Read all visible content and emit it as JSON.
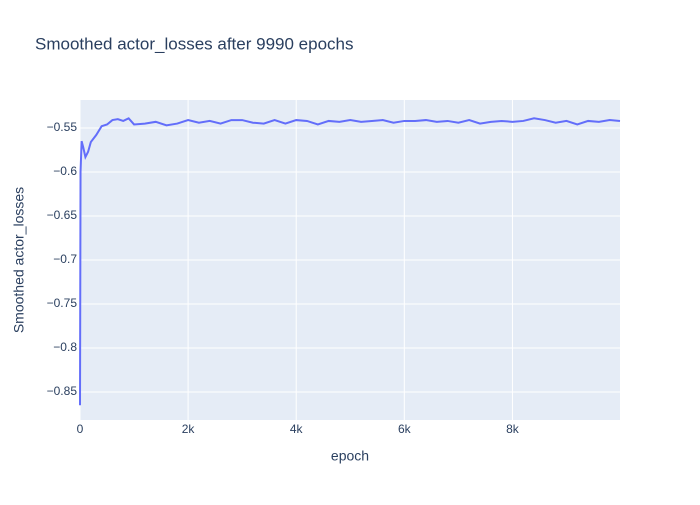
{
  "chart_data": {
    "type": "line",
    "title": "Smoothed actor_losses after 9990 epochs",
    "x_label": "epoch",
    "y_label": "Smoothed actor_losses",
    "x": [
      0,
      10,
      30,
      60,
      100,
      150,
      200,
      300,
      400,
      500,
      600,
      700,
      800,
      900,
      1000,
      1200,
      1400,
      1600,
      1800,
      2000,
      2200,
      2400,
      2600,
      2800,
      3000,
      3200,
      3400,
      3600,
      3800,
      4000,
      4200,
      4400,
      4600,
      4800,
      5000,
      5200,
      5400,
      5600,
      5800,
      6000,
      6200,
      6400,
      6600,
      6800,
      7000,
      7200,
      7400,
      7600,
      7800,
      8000,
      8200,
      8400,
      8600,
      8800,
      9000,
      9200,
      9400,
      9600,
      9800,
      9990
    ],
    "series": [
      {
        "color": "#636efa",
        "values": [
          -0.865,
          -0.6,
          -0.565,
          -0.572,
          -0.583,
          -0.577,
          -0.566,
          -0.558,
          -0.548,
          -0.546,
          -0.541,
          -0.54,
          -0.542,
          -0.539,
          -0.546,
          -0.545,
          -0.543,
          -0.547,
          -0.545,
          -0.541,
          -0.544,
          -0.542,
          -0.545,
          -0.541,
          -0.541,
          -0.544,
          -0.545,
          -0.541,
          -0.545,
          -0.541,
          -0.542,
          -0.546,
          -0.542,
          -0.543,
          -0.541,
          -0.543,
          -0.542,
          -0.541,
          -0.544,
          -0.542,
          -0.542,
          -0.541,
          -0.543,
          -0.542,
          -0.544,
          -0.541,
          -0.545,
          -0.543,
          -0.542,
          -0.543,
          -0.542,
          -0.539,
          -0.541,
          -0.544,
          -0.542,
          -0.546,
          -0.542,
          -0.543,
          -0.541,
          -0.542
        ]
      }
    ],
    "xlim": [
      0,
      9990
    ],
    "ylim": [
      -0.8818,
      -0.5182
    ],
    "xticks": [
      0,
      {
        "value": 2000,
        "label": "2k"
      },
      {
        "value": 4000,
        "label": "4k"
      },
      {
        "value": 6000,
        "label": "6k"
      },
      {
        "value": 8000,
        "label": "8k"
      }
    ],
    "yticks": [
      {
        "value": -0.55,
        "label": "−0.55"
      },
      {
        "value": -0.6,
        "label": "−0.6"
      },
      {
        "value": -0.65,
        "label": "−0.65"
      },
      {
        "value": -0.7,
        "label": "−0.7"
      },
      {
        "value": -0.75,
        "label": "−0.75"
      },
      {
        "value": -0.8,
        "label": "−0.8"
      },
      {
        "value": -0.85,
        "label": "−0.85"
      }
    ],
    "grid": true
  }
}
